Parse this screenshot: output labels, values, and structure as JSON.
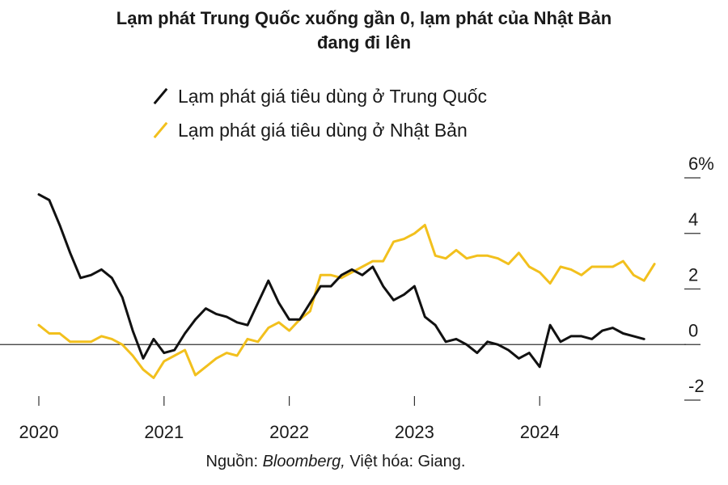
{
  "title_line1": "Lạm phát Trung Quốc xuống gần 0, lạm phát của Nhật Bản",
  "title_line2": "đang đi lên",
  "source": {
    "prefix": "Nguồn: ",
    "name": "Bloomberg,",
    "suffix": " Việt hóa: Giang."
  },
  "colors": {
    "china": "#111111",
    "japan": "#f2c01d",
    "axis": "#333333"
  },
  "chart_data": {
    "type": "line",
    "title": "Lạm phát Trung Quốc xuống gần 0, lạm phát của Nhật Bản đang đi lên",
    "y_unit_label": "6%",
    "ylim": [
      -2,
      6
    ],
    "y_ticks": [
      6,
      4,
      2,
      0,
      -2
    ],
    "y_tick_labels": [
      "6%",
      "4",
      "2",
      "0",
      "-2"
    ],
    "x_tick_labels": [
      "2020",
      "2021",
      "2022",
      "2023",
      "2024"
    ],
    "x_ticks": [
      2020,
      2021,
      2022,
      2023,
      2024
    ],
    "legend": "top-left",
    "grid": false,
    "series": [
      {
        "name": "Lạm phát giá tiêu dùng ở Trung Quốc",
        "color": "#111111",
        "start": "2020-01",
        "values": [
          5.4,
          5.2,
          4.3,
          3.3,
          2.4,
          2.5,
          2.7,
          2.4,
          1.7,
          0.5,
          -0.5,
          0.2,
          -0.3,
          -0.2,
          0.4,
          0.9,
          1.3,
          1.1,
          1.0,
          0.8,
          0.7,
          1.5,
          2.3,
          1.5,
          0.9,
          0.9,
          1.5,
          2.1,
          2.1,
          2.5,
          2.7,
          2.5,
          2.8,
          2.1,
          1.6,
          1.8,
          2.1,
          1.0,
          0.7,
          0.1,
          0.2,
          0.0,
          -0.3,
          0.1,
          0.0,
          -0.2,
          -0.5,
          -0.3,
          -0.8,
          0.7,
          0.1,
          0.3,
          0.3,
          0.2,
          0.5,
          0.6,
          0.4,
          0.3,
          0.2
        ]
      },
      {
        "name": "Lạm phát giá tiêu dùng ở Nhật Bản",
        "color": "#f2c01d",
        "start": "2020-01",
        "values": [
          0.7,
          0.4,
          0.4,
          0.1,
          0.1,
          0.1,
          0.3,
          0.2,
          0.0,
          -0.4,
          -0.9,
          -1.2,
          -0.6,
          -0.4,
          -0.2,
          -1.1,
          -0.8,
          -0.5,
          -0.3,
          -0.4,
          0.2,
          0.1,
          0.6,
          0.8,
          0.5,
          0.9,
          1.2,
          2.5,
          2.5,
          2.4,
          2.6,
          2.8,
          3.0,
          3.0,
          3.7,
          3.8,
          4.0,
          4.3,
          3.2,
          3.1,
          3.4,
          3.1,
          3.2,
          3.2,
          3.1,
          2.9,
          3.3,
          2.8,
          2.6,
          2.2,
          2.8,
          2.7,
          2.5,
          2.8,
          2.8,
          2.8,
          3.0,
          2.5,
          2.3,
          2.9
        ]
      }
    ]
  }
}
